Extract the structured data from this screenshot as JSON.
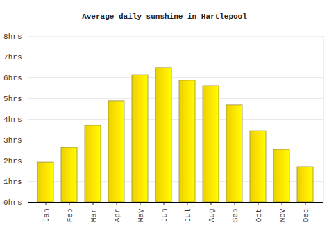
{
  "chart_data": {
    "type": "bar",
    "title": "Average daily sunshine in Hartlepool",
    "categories": [
      "Jan",
      "Feb",
      "Mar",
      "Apr",
      "May",
      "Jun",
      "Jul",
      "Aug",
      "Sep",
      "Oct",
      "Nov",
      "Dec"
    ],
    "values": [
      1.93,
      2.63,
      3.7,
      4.87,
      6.13,
      6.47,
      5.87,
      5.6,
      4.67,
      3.43,
      2.53,
      1.7
    ],
    "color": "#ffe600",
    "ylim": [
      0,
      8
    ],
    "yticks": [
      {
        "value": 0,
        "label": "0hrs"
      },
      {
        "value": 1,
        "label": "1hrs"
      },
      {
        "value": 2,
        "label": "2hrs"
      },
      {
        "value": 3,
        "label": "3hrs"
      },
      {
        "value": 4,
        "label": "4hrs"
      },
      {
        "value": 5,
        "label": "5hrs"
      },
      {
        "value": 6,
        "label": "6hrs"
      },
      {
        "value": 7,
        "label": "7hrs"
      },
      {
        "value": 8,
        "label": "8hrs"
      }
    ],
    "grid": true
  }
}
